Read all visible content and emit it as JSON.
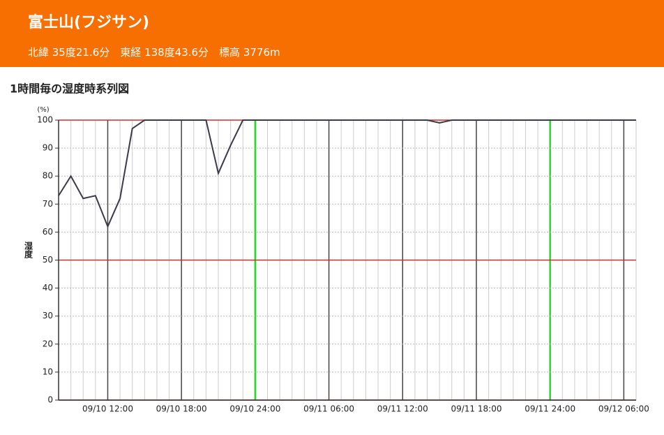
{
  "header": {
    "title": "富士山(フジサン)",
    "location": "北緯 35度21.6分　東経 138度43.6分　標高 3776m"
  },
  "chart_data": {
    "type": "line",
    "title": "1時間毎の湿度時系列図",
    "y_unit": "(%)",
    "ylabel": "湿度",
    "categories": [
      null,
      null,
      null,
      null,
      "09/10 12:00",
      null,
      null,
      null,
      null,
      null,
      "09/10 18:00",
      null,
      null,
      null,
      null,
      null,
      "09/10 24:00",
      null,
      null,
      null,
      null,
      null,
      "09/11 06:00",
      null,
      null,
      null,
      null,
      null,
      "09/11 12:00",
      null,
      null,
      null,
      null,
      null,
      "09/11 18:00",
      null,
      null,
      null,
      null,
      null,
      "09/11 24:00",
      null,
      null,
      null,
      null,
      null,
      "09/12 06:00",
      null
    ],
    "series": [
      {
        "name": "湿度",
        "color": "#3a3a4a",
        "values": [
          73,
          80,
          72,
          73,
          62,
          72,
          97,
          100,
          100,
          100,
          100,
          100,
          100,
          81,
          91,
          100,
          100,
          100,
          100,
          100,
          100,
          100,
          100,
          100,
          100,
          100,
          100,
          100,
          100,
          100,
          100,
          99,
          100,
          100,
          100,
          100,
          100,
          100,
          100,
          100,
          100,
          100,
          100,
          100,
          100,
          100,
          100,
          100
        ]
      }
    ],
    "ylim": [
      0,
      100
    ],
    "yticks": [
      0,
      10,
      20,
      30,
      40,
      50,
      60,
      70,
      80,
      90,
      100
    ],
    "grid": true
  }
}
